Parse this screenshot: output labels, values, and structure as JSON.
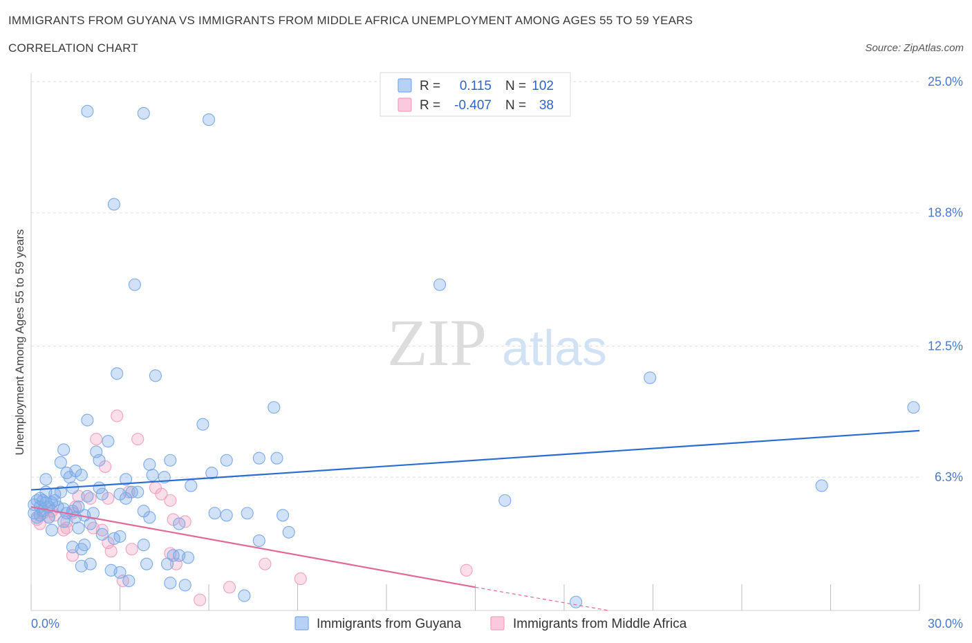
{
  "title": "IMMIGRANTS FROM GUYANA VS IMMIGRANTS FROM MIDDLE AFRICA UNEMPLOYMENT AMONG AGES 55 TO 59 YEARS",
  "subtitle": "CORRELATION CHART",
  "source": "Source: ZipAtlas.com",
  "watermark": {
    "zip": "ZIP",
    "atlas": "atlas"
  },
  "colors": {
    "blue": "#7aaae8",
    "blue_line": "#2a6dd0",
    "pink": "#f2a0bf",
    "pink_line": "#e06a95",
    "grid": "#dddddd",
    "axis_label": "#4a78c8"
  },
  "legend": {
    "rows": [
      {
        "r_label": "R =",
        "r_value": "0.115",
        "n_label": "N =",
        "n_value": "102"
      },
      {
        "r_label": "R =",
        "r_value": "-0.407",
        "n_label": "N =",
        "n_value": "38"
      }
    ]
  },
  "chart_data": {
    "type": "scatter",
    "title": "IMMIGRANTS FROM GUYANA VS IMMIGRANTS FROM MIDDLE AFRICA UNEMPLOYMENT AMONG AGES 55 TO 59 YEARS",
    "xlabel": "",
    "ylabel": "Unemployment Among Ages 55 to 59 years",
    "xlim": [
      0,
      30
    ],
    "ylim": [
      0,
      25
    ],
    "x_tick_labels": [
      {
        "value": 0,
        "label": "0.0%"
      },
      {
        "value": 30,
        "label": "30.0%"
      }
    ],
    "y_tick_labels": [
      {
        "value": 6.3,
        "label": "6.3%"
      },
      {
        "value": 12.5,
        "label": "12.5%"
      },
      {
        "value": 18.8,
        "label": "18.8%"
      },
      {
        "value": 25.0,
        "label": "25.0%"
      }
    ],
    "x_ticks": [
      0,
      3,
      6,
      9,
      12,
      15,
      18,
      21,
      24,
      27,
      30
    ],
    "series": [
      {
        "name": "Immigrants from Guyana",
        "color": "#7aaae8",
        "R": 0.115,
        "N": 102,
        "trend": {
          "x": [
            0,
            30
          ],
          "y": [
            5.7,
            8.5
          ]
        },
        "points": [
          [
            1.9,
            23.6
          ],
          [
            3.8,
            23.5
          ],
          [
            6.0,
            23.2
          ],
          [
            2.8,
            19.2
          ],
          [
            3.5,
            15.4
          ],
          [
            13.8,
            15.4
          ],
          [
            2.9,
            11.2
          ],
          [
            4.2,
            11.1
          ],
          [
            20.9,
            11.0
          ],
          [
            29.8,
            9.6
          ],
          [
            8.2,
            9.6
          ],
          [
            5.8,
            8.8
          ],
          [
            1.9,
            9.0
          ],
          [
            2.6,
            8.0
          ],
          [
            1.1,
            7.6
          ],
          [
            2.2,
            7.5
          ],
          [
            1.0,
            7.0
          ],
          [
            2.3,
            7.1
          ],
          [
            4.0,
            6.9
          ],
          [
            4.7,
            7.1
          ],
          [
            6.6,
            7.1
          ],
          [
            7.7,
            7.2
          ],
          [
            8.3,
            7.2
          ],
          [
            0.5,
            6.2
          ],
          [
            1.2,
            6.5
          ],
          [
            1.5,
            6.6
          ],
          [
            1.7,
            6.4
          ],
          [
            1.3,
            6.3
          ],
          [
            3.2,
            6.2
          ],
          [
            4.1,
            6.4
          ],
          [
            4.5,
            6.3
          ],
          [
            6.1,
            6.5
          ],
          [
            0.5,
            5.6
          ],
          [
            0.8,
            5.5
          ],
          [
            1.0,
            5.6
          ],
          [
            1.4,
            5.8
          ],
          [
            2.3,
            5.8
          ],
          [
            2.4,
            5.5
          ],
          [
            3.0,
            5.5
          ],
          [
            3.4,
            5.6
          ],
          [
            3.6,
            5.6
          ],
          [
            5.4,
            5.9
          ],
          [
            0.1,
            5.0
          ],
          [
            0.2,
            5.2
          ],
          [
            0.3,
            5.3
          ],
          [
            0.4,
            5.2
          ],
          [
            0.5,
            5.1
          ],
          [
            0.6,
            4.9
          ],
          [
            0.7,
            5.1
          ],
          [
            0.8,
            5.2
          ],
          [
            0.9,
            4.9
          ],
          [
            1.1,
            4.8
          ],
          [
            1.2,
            4.6
          ],
          [
            1.4,
            4.7
          ],
          [
            1.6,
            4.9
          ],
          [
            0.1,
            4.6
          ],
          [
            0.2,
            4.4
          ],
          [
            0.3,
            4.5
          ],
          [
            0.4,
            4.7
          ],
          [
            1.5,
            4.4
          ],
          [
            1.8,
            4.5
          ],
          [
            2.0,
            4.1
          ],
          [
            3.8,
            4.7
          ],
          [
            4.0,
            4.4
          ],
          [
            5.0,
            4.1
          ],
          [
            6.2,
            4.6
          ],
          [
            6.6,
            4.5
          ],
          [
            7.3,
            4.6
          ],
          [
            8.5,
            4.5
          ],
          [
            16.0,
            5.2
          ],
          [
            26.7,
            5.9
          ],
          [
            0.7,
            3.8
          ],
          [
            1.6,
            3.9
          ],
          [
            2.4,
            3.6
          ],
          [
            2.8,
            3.4
          ],
          [
            3.0,
            3.5
          ],
          [
            3.8,
            3.1
          ],
          [
            7.7,
            3.3
          ],
          [
            8.7,
            3.7
          ],
          [
            1.4,
            3.0
          ],
          [
            1.7,
            2.9
          ],
          [
            1.8,
            3.1
          ],
          [
            4.8,
            2.6
          ],
          [
            5.0,
            2.6
          ],
          [
            5.3,
            2.5
          ],
          [
            1.7,
            2.1
          ],
          [
            2.0,
            2.2
          ],
          [
            3.0,
            1.8
          ],
          [
            3.3,
            1.4
          ],
          [
            4.6,
            2.2
          ],
          [
            4.7,
            1.3
          ],
          [
            5.2,
            1.2
          ],
          [
            7.2,
            0.7
          ],
          [
            18.4,
            0.4
          ],
          [
            2.7,
            1.9
          ],
          [
            3.9,
            2.2
          ],
          [
            0.3,
            4.9
          ],
          [
            0.6,
            4.4
          ],
          [
            1.1,
            4.2
          ],
          [
            2.1,
            4.6
          ],
          [
            1.9,
            5.4
          ],
          [
            3.2,
            5.3
          ]
        ]
      },
      {
        "name": "Immigrants from Middle Africa",
        "color": "#f2a0bf",
        "R": -0.407,
        "N": 38,
        "trend": {
          "x": [
            0,
            15
          ],
          "y": [
            4.9,
            1.1
          ]
        },
        "trend_dashed": {
          "x": [
            15,
            19.5
          ],
          "y": [
            1.1,
            0.0
          ]
        },
        "points": [
          [
            2.9,
            9.2
          ],
          [
            3.6,
            8.1
          ],
          [
            2.2,
            8.1
          ],
          [
            2.5,
            6.8
          ],
          [
            4.2,
            5.8
          ],
          [
            1.6,
            5.4
          ],
          [
            2.0,
            5.3
          ],
          [
            2.6,
            5.3
          ],
          [
            3.3,
            5.6
          ],
          [
            4.4,
            5.5
          ],
          [
            4.7,
            5.2
          ],
          [
            1.5,
            4.9
          ],
          [
            1.4,
            4.6
          ],
          [
            1.2,
            4.2
          ],
          [
            0.6,
            4.4
          ],
          [
            0.4,
            4.6
          ],
          [
            0.2,
            4.3
          ],
          [
            0.3,
            4.1
          ],
          [
            0.7,
            4.7
          ],
          [
            0.8,
            4.5
          ],
          [
            1.1,
            3.8
          ],
          [
            1.2,
            3.9
          ],
          [
            2.1,
            3.9
          ],
          [
            2.4,
            3.8
          ],
          [
            2.6,
            3.2
          ],
          [
            2.7,
            2.8
          ],
          [
            1.4,
            2.6
          ],
          [
            3.4,
            2.9
          ],
          [
            4.7,
            2.7
          ],
          [
            4.9,
            2.2
          ],
          [
            4.8,
            4.3
          ],
          [
            3.1,
            1.4
          ],
          [
            7.9,
            2.2
          ],
          [
            9.1,
            1.5
          ],
          [
            6.7,
            1.1
          ],
          [
            5.7,
            0.5
          ],
          [
            14.7,
            1.9
          ],
          [
            5.2,
            4.2
          ]
        ]
      }
    ]
  }
}
